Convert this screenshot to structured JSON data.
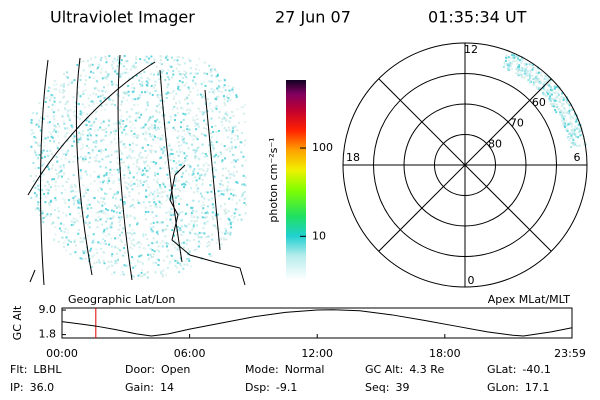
{
  "header": {
    "title": "Ultraviolet Imager",
    "date": "27 Jun 07",
    "time": "01:35:34 UT"
  },
  "geographic_panel": {
    "label": "Geographic Lat/Lon"
  },
  "colorbar": {
    "label": "photon cm⁻²s⁻¹",
    "log": true,
    "lim": [
      3.2,
      590
    ],
    "ticks": [
      10,
      100
    ]
  },
  "polar_panel": {
    "label": "Apex MLat/MLT",
    "rlim": [
      90,
      50
    ],
    "lat_rings": [
      60,
      70,
      80
    ],
    "mlt_labels": [
      {
        "value": 12,
        "label": "12"
      },
      {
        "value": 18,
        "label": "18"
      },
      {
        "value": 6,
        "label": "6"
      },
      {
        "value": 0,
        "label": "0"
      }
    ]
  },
  "altitude_plot": {
    "ylabel": "GC Alt",
    "ylim": [
      0.8,
      9.6
    ],
    "yticks": [
      {
        "value": 9.0,
        "label": "9.0"
      },
      {
        "value": 1.8,
        "label": "1.8"
      }
    ],
    "xlim": [
      0,
      23.98
    ],
    "xticks": [
      {
        "value": 0,
        "label": "00:00"
      },
      {
        "value": 6,
        "label": "06:00"
      },
      {
        "value": 12,
        "label": "12:00"
      },
      {
        "value": 18,
        "label": "18:00"
      },
      {
        "value": 23.98,
        "label": "23:59"
      }
    ],
    "marker": 1.59,
    "x": [
      0,
      1,
      1.59,
      2.5,
      3.5,
      4.2,
      5,
      6,
      7.5,
      9,
      10.5,
      12,
      12.75,
      14,
      15.5,
      17,
      18.5,
      20,
      21.2,
      21.7,
      23,
      23.98
    ],
    "values": [
      5.6,
      4.8,
      4.3,
      3.3,
      2.0,
      1.4,
      2.0,
      3.4,
      5.2,
      7.0,
      8.3,
      9.0,
      9.1,
      8.8,
      7.6,
      6.0,
      4.3,
      2.6,
      1.6,
      1.4,
      2.6,
      3.8
    ]
  },
  "footer": {
    "rows": [
      [
        {
          "label": "Flt:",
          "value": "LBHL"
        },
        {
          "label": "Door:",
          "value": "Open"
        },
        {
          "label": "Mode:",
          "value": "Normal"
        },
        {
          "label": "GC Alt:",
          "value": "4.3 Re"
        },
        {
          "label": "GLat:",
          "value": "-40.1"
        }
      ],
      [
        {
          "label": "IP:",
          "value": "36.0"
        },
        {
          "label": "Gain:",
          "value": "14"
        },
        {
          "label": "Dsp:",
          "value": "-9.1"
        },
        {
          "label": "Seq:",
          "value": "39"
        },
        {
          "label": "GLon:",
          "value": "17.1"
        }
      ]
    ]
  }
}
